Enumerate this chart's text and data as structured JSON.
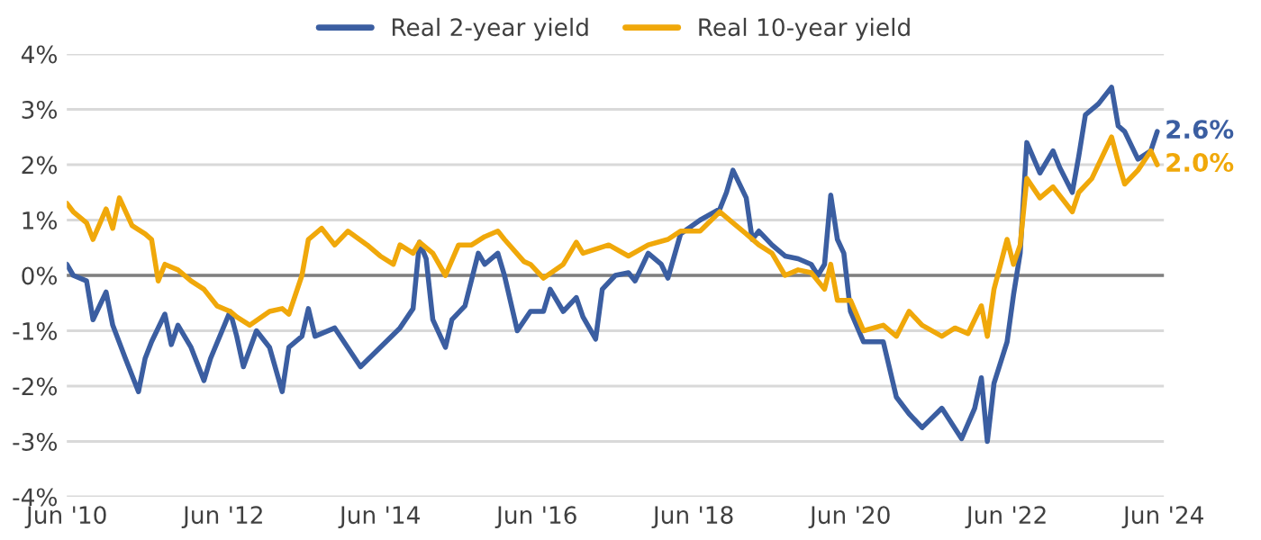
{
  "chart_data": {
    "type": "line",
    "series": [
      {
        "name": "Real 2-year yield",
        "color": "#3b5ea1",
        "x": [
          "2010-06",
          "2010-07",
          "2010-09",
          "2010-10",
          "2010-12",
          "2011-01",
          "2011-03",
          "2011-05",
          "2011-06",
          "2011-07",
          "2011-09",
          "2011-10",
          "2011-11",
          "2012-01",
          "2012-03",
          "2012-04",
          "2012-07",
          "2012-08",
          "2012-09",
          "2012-11",
          "2013-01",
          "2013-03",
          "2013-04",
          "2013-06",
          "2013-07",
          "2013-08",
          "2013-11",
          "2014-03",
          "2014-06",
          "2014-09",
          "2014-11",
          "2014-12",
          "2015-01",
          "2015-02",
          "2015-04",
          "2015-05",
          "2015-07",
          "2015-09",
          "2015-10",
          "2015-12",
          "2016-01",
          "2016-03",
          "2016-05",
          "2016-07",
          "2016-08",
          "2016-10",
          "2016-12",
          "2017-01",
          "2017-03",
          "2017-04",
          "2017-06",
          "2017-08",
          "2017-09",
          "2017-11",
          "2018-01",
          "2018-02",
          "2018-04",
          "2018-07",
          "2018-10",
          "2018-11",
          "2018-12",
          "2019-02",
          "2019-03",
          "2019-04",
          "2019-06",
          "2019-08",
          "2019-10",
          "2019-12",
          "2020-01",
          "2020-02",
          "2020-03",
          "2020-04",
          "2020-05",
          "2020-06",
          "2020-08",
          "2020-11",
          "2021-01",
          "2021-03",
          "2021-05",
          "2021-08",
          "2021-11",
          "2022-01",
          "2022-02",
          "2022-03",
          "2022-04",
          "2022-06",
          "2022-07",
          "2022-08",
          "2022-09",
          "2022-11",
          "2023-01",
          "2023-02",
          "2023-04",
          "2023-05",
          "2023-06",
          "2023-08",
          "2023-10",
          "2023-11",
          "2023-12",
          "2024-02",
          "2024-04",
          "2024-05"
        ],
        "values": [
          0.2,
          0.0,
          -0.1,
          -0.8,
          -0.3,
          -0.9,
          -1.5,
          -2.1,
          -1.5,
          -1.2,
          -0.7,
          -1.25,
          -0.9,
          -1.3,
          -1.9,
          -1.5,
          -0.65,
          -1.1,
          -1.65,
          -1.0,
          -1.3,
          -2.1,
          -1.3,
          -1.1,
          -0.6,
          -1.1,
          -0.95,
          -1.65,
          -1.3,
          -0.95,
          -0.6,
          0.6,
          0.3,
          -0.8,
          -1.3,
          -0.8,
          -0.55,
          0.4,
          0.2,
          0.4,
          0.0,
          -1.0,
          -0.65,
          -0.65,
          -0.25,
          -0.65,
          -0.4,
          -0.75,
          -1.15,
          -0.25,
          0.0,
          0.05,
          -0.1,
          0.4,
          0.2,
          -0.05,
          0.75,
          1.0,
          1.2,
          1.5,
          1.9,
          1.4,
          0.65,
          0.8,
          0.55,
          0.35,
          0.3,
          0.2,
          0.0,
          0.2,
          1.45,
          0.65,
          0.4,
          -0.65,
          -1.2,
          -1.2,
          -2.2,
          -2.5,
          -2.75,
          -2.4,
          -2.95,
          -2.4,
          -1.85,
          -3.0,
          -1.95,
          -1.2,
          -0.35,
          0.4,
          2.4,
          1.85,
          2.25,
          1.95,
          1.5,
          2.15,
          2.9,
          3.1,
          3.4,
          2.7,
          2.6,
          2.1,
          2.25,
          2.6
        ]
      },
      {
        "name": "Real 10-year yield",
        "color": "#f0a80a",
        "x": [
          "2010-06",
          "2010-07",
          "2010-09",
          "2010-10",
          "2010-12",
          "2011-01",
          "2011-02",
          "2011-04",
          "2011-06",
          "2011-07",
          "2011-08",
          "2011-09",
          "2011-11",
          "2012-01",
          "2012-03",
          "2012-05",
          "2012-07",
          "2012-08",
          "2012-10",
          "2013-01",
          "2013-03",
          "2013-04",
          "2013-06",
          "2013-07",
          "2013-09",
          "2013-11",
          "2014-01",
          "2014-04",
          "2014-06",
          "2014-08",
          "2014-09",
          "2014-11",
          "2014-12",
          "2015-02",
          "2015-04",
          "2015-06",
          "2015-08",
          "2015-10",
          "2015-12",
          "2016-01",
          "2016-04",
          "2016-05",
          "2016-07",
          "2016-10",
          "2016-12",
          "2017-01",
          "2017-05",
          "2017-08",
          "2017-11",
          "2018-02",
          "2018-04",
          "2018-07",
          "2018-10",
          "2018-12",
          "2019-02",
          "2019-04",
          "2019-06",
          "2019-08",
          "2019-10",
          "2019-12",
          "2020-02",
          "2020-03",
          "2020-04",
          "2020-06",
          "2020-08",
          "2020-11",
          "2021-01",
          "2021-03",
          "2021-05",
          "2021-08",
          "2021-10",
          "2021-12",
          "2022-02",
          "2022-03",
          "2022-04",
          "2022-06",
          "2022-07",
          "2022-08",
          "2022-09",
          "2022-11",
          "2023-01",
          "2023-04",
          "2023-05",
          "2023-07",
          "2023-10",
          "2023-11",
          "2023-12",
          "2024-02",
          "2024-04",
          "2024-05"
        ],
        "values": [
          1.3,
          1.15,
          0.95,
          0.65,
          1.2,
          0.85,
          1.4,
          0.9,
          0.75,
          0.65,
          -0.1,
          0.2,
          0.1,
          -0.1,
          -0.25,
          -0.55,
          -0.65,
          -0.75,
          -0.9,
          -0.65,
          -0.6,
          -0.7,
          0.0,
          0.65,
          0.85,
          0.55,
          0.8,
          0.55,
          0.35,
          0.2,
          0.55,
          0.4,
          0.6,
          0.4,
          0.0,
          0.55,
          0.55,
          0.7,
          0.8,
          0.65,
          0.25,
          0.2,
          -0.05,
          0.2,
          0.6,
          0.4,
          0.55,
          0.35,
          0.55,
          0.65,
          0.8,
          0.8,
          1.15,
          0.95,
          0.75,
          0.55,
          0.4,
          0.0,
          0.1,
          0.05,
          -0.25,
          0.2,
          -0.45,
          -0.45,
          -1.0,
          -0.9,
          -1.1,
          -0.65,
          -0.9,
          -1.1,
          -0.95,
          -1.05,
          -0.55,
          -1.1,
          -0.25,
          0.65,
          0.2,
          0.55,
          1.75,
          1.4,
          1.6,
          1.15,
          1.5,
          1.75,
          2.5,
          2.05,
          1.65,
          1.9,
          2.25,
          2.0
        ]
      }
    ],
    "xlim": [
      "2010-06",
      "2024-06"
    ],
    "xticks": [
      {
        "value": "2010-06",
        "label": "Jun '10"
      },
      {
        "value": "2012-06",
        "label": "Jun '12"
      },
      {
        "value": "2014-06",
        "label": "Jun '14"
      },
      {
        "value": "2016-06",
        "label": "Jun '16"
      },
      {
        "value": "2018-06",
        "label": "Jun '18"
      },
      {
        "value": "2020-06",
        "label": "Jun '20"
      },
      {
        "value": "2022-06",
        "label": "Jun '22"
      },
      {
        "value": "2024-06",
        "label": "Jun '24"
      }
    ],
    "ylim": [
      -4,
      4
    ],
    "yticks": [
      {
        "value": -4,
        "label": "-4%"
      },
      {
        "value": -3,
        "label": "-3%"
      },
      {
        "value": -2,
        "label": "-2%"
      },
      {
        "value": -1,
        "label": "-1%"
      },
      {
        "value": 0,
        "label": "0%"
      },
      {
        "value": 1,
        "label": "1%"
      },
      {
        "value": 2,
        "label": "2%"
      },
      {
        "value": 3,
        "label": "3%"
      },
      {
        "value": 4,
        "label": "4%"
      }
    ],
    "ref_lines": [
      {
        "axis": "y",
        "value": 0,
        "color": "#7f7f7f"
      }
    ],
    "annotations": [
      {
        "text": "2.6%",
        "x": "2024-05",
        "y": 2.6
      },
      {
        "text": "2.0%",
        "x": "2024-05",
        "y": 2.0
      }
    ],
    "grid": "y",
    "legend": "top",
    "line_style": "solid",
    "marker": "none"
  }
}
